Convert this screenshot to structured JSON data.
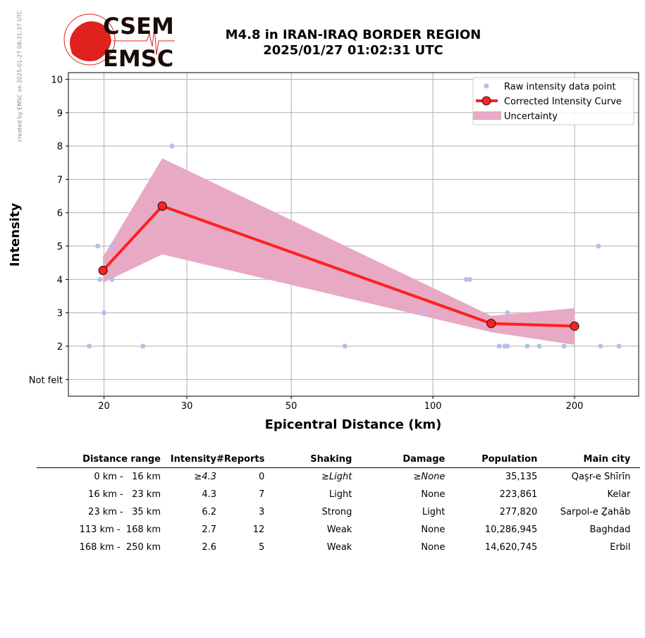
{
  "watermark": "created by EMSC on 2025-01-27 08:31:37 UTC",
  "logo": {
    "line1": "CSEM",
    "line2": "EMSC"
  },
  "title": {
    "line1": "M4.8 in IRAN-IRAQ BORDER REGION",
    "line2": "2025/01/27 01:02:31 UTC"
  },
  "chart_data": {
    "type": "line",
    "xlabel": "Epicentral Distance (km)",
    "ylabel": "Intensity",
    "xscale": "log",
    "xlim": [
      16.8,
      273.7
    ],
    "ylim": [
      0.5,
      10.2
    ],
    "xticks": [
      {
        "v": 20,
        "label": "20"
      },
      {
        "v": 30,
        "label": "30"
      },
      {
        "v": 50,
        "label": "50"
      },
      {
        "v": 100,
        "label": "100"
      },
      {
        "v": 200,
        "label": "200"
      }
    ],
    "yticks": [
      {
        "v": 1,
        "label": "Not felt"
      },
      {
        "v": 2,
        "label": "2"
      },
      {
        "v": 3,
        "label": "3"
      },
      {
        "v": 4,
        "label": "4"
      },
      {
        "v": 5,
        "label": "5"
      },
      {
        "v": 6,
        "label": "6"
      },
      {
        "v": 7,
        "label": "7"
      },
      {
        "v": 8,
        "label": "8"
      },
      {
        "v": 9,
        "label": "9"
      },
      {
        "v": 10,
        "label": "10"
      }
    ],
    "grid": true,
    "legend_position": "top-right",
    "legend": [
      "Raw intensity data point",
      "Corrected Intensity Curve",
      "Uncertainty"
    ],
    "raw_points": [
      [
        18.6,
        2
      ],
      [
        19.4,
        5
      ],
      [
        20.8,
        5
      ],
      [
        19.6,
        4
      ],
      [
        20.8,
        4
      ],
      [
        20.0,
        3
      ],
      [
        24.2,
        2
      ],
      [
        27.9,
        8
      ],
      [
        27.9,
        6
      ],
      [
        65.0,
        2
      ],
      [
        95.3,
        3
      ],
      [
        116.4,
        3
      ],
      [
        117.6,
        4
      ],
      [
        119.7,
        4
      ],
      [
        138.3,
        2
      ],
      [
        142.2,
        2
      ],
      [
        144.1,
        2
      ],
      [
        144.1,
        3
      ],
      [
        158.7,
        2
      ],
      [
        168.3,
        2
      ],
      [
        189.9,
        2
      ],
      [
        224.8,
        5
      ],
      [
        227.2,
        2
      ],
      [
        248.5,
        2
      ]
    ],
    "curve": [
      [
        19.9,
        4.27
      ],
      [
        26.6,
        6.2
      ],
      [
        133,
        2.68
      ],
      [
        200,
        2.6
      ]
    ],
    "uncertainty_upper": [
      [
        19.9,
        4.67
      ],
      [
        26.6,
        7.63
      ],
      [
        133,
        2.91
      ],
      [
        200,
        3.14
      ]
    ],
    "uncertainty_lower": [
      [
        19.9,
        3.9
      ],
      [
        26.6,
        4.75
      ],
      [
        133,
        2.42
      ],
      [
        200,
        2.04
      ]
    ],
    "colors": {
      "raw": "#b4c0ea",
      "curve": "#ff2020",
      "band": "#e8a9c4"
    }
  },
  "table": {
    "headers": [
      "Distance range",
      "Intensity",
      "#Reports",
      "Shaking",
      "Damage",
      "Population",
      "Main city"
    ],
    "rows": [
      [
        "0 km -   16 km",
        "≥4.3",
        "0",
        "≥Light",
        "≥None",
        "35,135",
        "Qaşr-e Shīrīn"
      ],
      [
        "16 km -   23 km",
        "4.3",
        "7",
        "Light",
        "None",
        "223,861",
        "Kelar"
      ],
      [
        "23 km -   35 km",
        "6.2",
        "3",
        "Strong",
        "Light",
        "277,820",
        "Sarpol-e Ẕahāb"
      ],
      [
        "113 km -  168 km",
        "2.7",
        "12",
        "Weak",
        "None",
        "10,286,945",
        "Baghdad"
      ],
      [
        "168 km -  250 km",
        "2.6",
        "5",
        "Weak",
        "None",
        "14,620,745",
        "Erbil"
      ]
    ]
  }
}
